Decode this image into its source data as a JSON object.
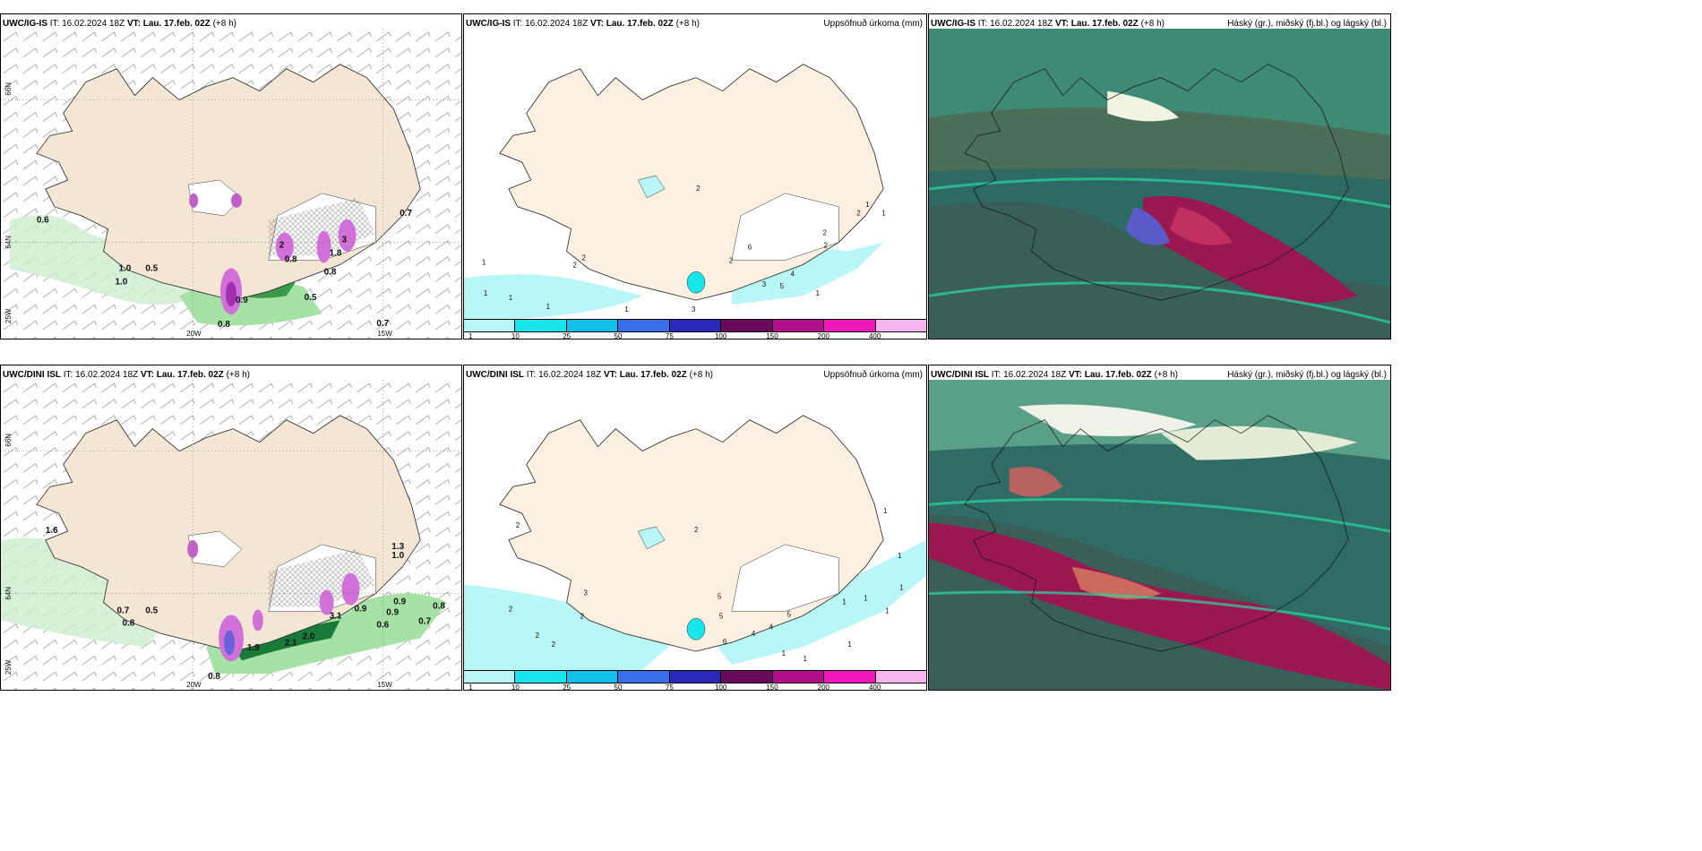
{
  "panels": [
    {
      "model": "UWC/IG-IS",
      "it": "IT: 16.02.2024 18Z",
      "vt_prefix": "VT:",
      "vt": "Lau. 17.feb. 02Z",
      "lead": "(+8 h)",
      "right_title": "",
      "values": [
        "0.6",
        "1.0",
        "0.5",
        "1.0",
        "0.8",
        "0.9",
        "0.8",
        "0.5",
        "0.7",
        "0.7",
        "0.8",
        "2",
        "1.8",
        "3"
      ],
      "lat_labels": [
        "66N",
        "64N"
      ],
      "lon_labels": [
        "25W",
        "20W",
        "15W"
      ]
    },
    {
      "model": "UWC/IG-IS",
      "it": "IT: 16.02.2024 18Z",
      "vt_prefix": "VT:",
      "vt": "Lau. 17.feb. 02Z",
      "lead": "(+8 h)",
      "right_title": "Uppsöfnuð úrkoma (mm)",
      "values": [
        "1",
        "1",
        "1",
        "2",
        "2",
        "3",
        "6",
        "2",
        "2",
        "3",
        "5",
        "4",
        "1",
        "2",
        "1",
        "1",
        "1",
        "2",
        "1",
        "2"
      ]
    },
    {
      "model": "UWC/IG-IS",
      "it": "IT: 16.02.2024 18Z",
      "vt_prefix": "VT:",
      "vt": "Lau. 17.feb. 02Z",
      "lead": "(+8 h)",
      "right_title": "Háský (gr.), miðský (fj.bl.) og lágský (bl.)"
    },
    {
      "model": "UWC/DINI ISL",
      "it": "IT: 16.02.2024 18Z",
      "vt_prefix": "VT:",
      "vt": "Lau. 17.feb. 02Z",
      "lead": "(+8 h)",
      "right_title": "",
      "values": [
        "1.6",
        "0.7",
        "0.5",
        "0.8",
        "1.9",
        "2.1",
        "2.0",
        "3.1",
        "0.9",
        "0.9",
        "0.6",
        "0.9",
        "0.7",
        "0.8",
        "1.3",
        "1.0",
        "0.8"
      ],
      "lat_labels": [
        "66N",
        "64N"
      ],
      "lon_labels": [
        "25W",
        "20W",
        "15W"
      ]
    },
    {
      "model": "UWC/DINI ISL",
      "it": "IT: 16.02.2024 18Z",
      "vt_prefix": "VT:",
      "vt": "Lau. 17.feb. 02Z",
      "lead": "(+8 h)",
      "right_title": "Uppsöfnuð úrkoma (mm)",
      "values": [
        "2",
        "2",
        "2",
        "2",
        "2",
        "3",
        "2",
        "5",
        "5",
        "4",
        "6",
        "5",
        "4",
        "1",
        "1",
        "1",
        "1",
        "1",
        "1",
        "1",
        "1",
        "1"
      ]
    },
    {
      "model": "UWC/DINI ISL",
      "it": "IT: 16.02.2024 18Z",
      "vt_prefix": "VT:",
      "vt": "Lau. 17.feb. 02Z",
      "lead": "(+8 h)",
      "right_title": "Háský (gr.), miðský (fj.bl.) og lágský (bl.)"
    }
  ],
  "colorbar": {
    "ticks": [
      "1",
      "10",
      "25",
      "50",
      "75",
      "100",
      "150",
      "200",
      "400"
    ],
    "colors": [
      "#b8f6f8",
      "#18e6ec",
      "#10c0e8",
      "#3a6ee8",
      "#2a2ab8",
      "#6a0a5a",
      "#b0108a",
      "#f018b8",
      "#f4b4f0"
    ]
  },
  "land_color": "#f8ecdc",
  "cloud_colors": {
    "low": "#2c5e78",
    "mid": "#2a8a70",
    "high": "#c8c8c8",
    "precip": "#9a1850"
  }
}
